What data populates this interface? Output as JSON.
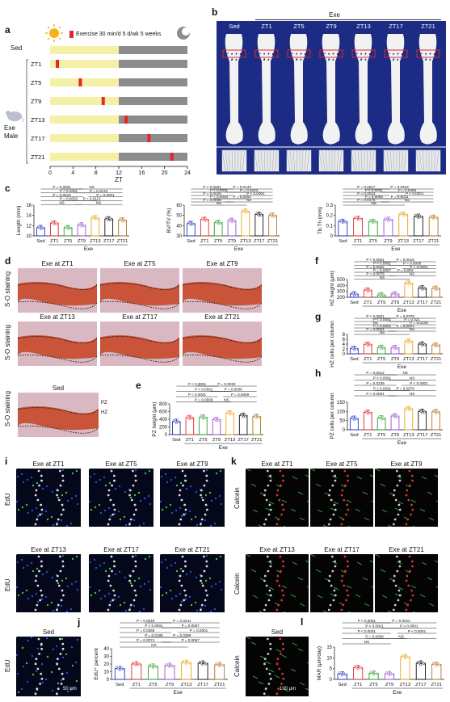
{
  "panels": {
    "a": {
      "label": "a",
      "sed_label": "Sed",
      "legend": "Exercise  30 min/d  5 d/wk 5 weeks",
      "group_label": "Exe",
      "group_label2": "Male",
      "rows": [
        "ZT1",
        "ZT5",
        "ZT9",
        "ZT13",
        "ZT17",
        "ZT21"
      ],
      "exercise_times": [
        1,
        5,
        9,
        13,
        17,
        21
      ],
      "xticks": [
        "0",
        "4",
        "8",
        "12",
        "16",
        "20",
        "24"
      ],
      "xlabel": "ZT",
      "colors": {
        "light": "#f4f1a6",
        "dark": "#8c8c8c",
        "exercise": "#e5252a"
      }
    },
    "b": {
      "label": "b",
      "header": "Exe",
      "columns": [
        "Sed",
        "ZT1",
        "ZT5",
        "ZT9",
        "ZT13",
        "ZT17",
        "ZT21"
      ],
      "background": "#1c2c84"
    },
    "c": {
      "label": "c"
    },
    "d": {
      "label": "d",
      "tiles": [
        "Exe at ZT1",
        "Exe at ZT5",
        "Exe at ZT9",
        "Exe at ZT13",
        "Exe at ZT17",
        "Exe at ZT21"
      ],
      "sed_title": "Sed",
      "row_label": "S-O staining",
      "pz": "PZ",
      "hz": "HZ"
    },
    "e": {
      "label": "e"
    },
    "f": {
      "label": "f"
    },
    "g": {
      "label": "g"
    },
    "h": {
      "label": "h"
    },
    "i": {
      "label": "i",
      "tiles": [
        "Exe at ZT1",
        "Exe at ZT5",
        "Exe at ZT9",
        "Exe at ZT13",
        "Exe at ZT17",
        "Exe at ZT21"
      ],
      "sed_title": "Sed",
      "row_label": "EdU",
      "scale": "50 μm"
    },
    "j": {
      "label": "j"
    },
    "k": {
      "label": "k",
      "tiles": [
        "Exe at ZT1",
        "Exe at ZT5",
        "Exe at ZT9",
        "Exe at ZT13",
        "Exe at ZT17",
        "Exe at ZT21"
      ],
      "sed_title": "Sed",
      "row_label": "Calcein",
      "scale": "100 μm"
    },
    "l": {
      "label": "l"
    }
  },
  "chart_data": [
    {
      "id": "c1",
      "type": "bar",
      "ylabel": "Length (mm)",
      "ylim": [
        10,
        16
      ],
      "yticks": [
        10,
        12,
        14,
        16
      ],
      "categories": [
        "Sed",
        "ZT1",
        "ZT5",
        "ZT9",
        "ZT13",
        "ZT17",
        "ZT21"
      ],
      "values": [
        11.6,
        12.5,
        11.6,
        12.1,
        13.5,
        13.3,
        13.1
      ],
      "group_label": "Exe",
      "colors": [
        "#2233cc",
        "#e5252a",
        "#2ca02c",
        "#9b4fd1",
        "#e8a317",
        "#111111",
        "#b5701f"
      ],
      "annotations": [
        "P = 0.0001",
        "NS",
        "P < 0.0001",
        "P = 0.0144",
        "P = 0.0043",
        "P = 0.0001",
        "P = 0.0033",
        "P = 0.0113",
        "NS",
        "NS"
      ]
    },
    {
      "id": "c2",
      "type": "bar",
      "ylabel": "BV/TV (%)",
      "ylim": [
        30,
        60
      ],
      "yticks": [
        30,
        40,
        50,
        60
      ],
      "categories": [
        "Sed",
        "ZT1",
        "ZT5",
        "ZT9",
        "ZT13",
        "ZT17",
        "ZT21"
      ],
      "values": [
        42,
        46,
        43,
        45,
        54,
        51,
        50
      ],
      "group_label": "Exe",
      "colors": [
        "#2233cc",
        "#e5252a",
        "#2ca02c",
        "#9b4fd1",
        "#e8a317",
        "#111111",
        "#b5701f"
      ],
      "annotations": [
        "P < 0.0001",
        "P = 0.0143",
        "P < 0.0001",
        "P = 0.0243",
        "P = 0.0029",
        "P < 0.0001",
        "P = 0.0034",
        "P = 0.0002",
        "P = 0.0008",
        "NS",
        "NS"
      ]
    },
    {
      "id": "c3",
      "type": "bar",
      "ylabel": "Tb.Th (mm)",
      "ylim": [
        0.0,
        0.3
      ],
      "yticks": [
        0.0,
        0.1,
        0.2,
        0.3
      ],
      "categories": [
        "Sed",
        "ZT1",
        "ZT5",
        "ZT9",
        "ZT13",
        "ZT17",
        "ZT21"
      ],
      "values": [
        0.14,
        0.17,
        0.14,
        0.16,
        0.21,
        0.19,
        0.18
      ],
      "group_label": "Exe",
      "colors": [
        "#2233cc",
        "#e5252a",
        "#2ca02c",
        "#9b4fd1",
        "#e8a317",
        "#111111",
        "#b5701f"
      ],
      "annotations": [
        "P = 0.0017",
        "P = 0.0343",
        "P < 0.0001",
        "P = 0.0459",
        "P = 0.0023",
        "P < 0.0001",
        "P = 0.0008",
        "P = 0.0011",
        "P = 0.0175",
        "NS",
        "NS"
      ]
    },
    {
      "id": "e",
      "type": "bar",
      "ylabel": "PZ height (μm)",
      "ylim": [
        0,
        800
      ],
      "yticks": [
        0,
        200,
        400,
        600,
        800
      ],
      "categories": [
        "Sed",
        "ZT1",
        "ZT5",
        "ZT9",
        "ZT13",
        "ZT17",
        "ZT21"
      ],
      "values": [
        340,
        440,
        450,
        390,
        560,
        500,
        470
      ],
      "group_label": "Exe",
      "colors": [
        "#2233cc",
        "#e5252a",
        "#2ca02c",
        "#9b4fd1",
        "#e8a317",
        "#111111",
        "#b5701f"
      ],
      "annotations": [
        "P < 0.0001",
        "P = 0.0032",
        "P < 0.0001",
        "P = 0.0006",
        "P < 0.0001",
        "P = 0.0009",
        "P = 0.0008",
        "NS"
      ]
    },
    {
      "id": "f",
      "type": "bar",
      "ylabel": "HZ height (μm)",
      "ylim": [
        200,
        500
      ],
      "yticks": [
        200,
        300,
        400,
        500
      ],
      "categories": [
        "Sed",
        "ZT1",
        "ZT5",
        "ZT9",
        "ZT13",
        "ZT17",
        "ZT21"
      ],
      "values": [
        255,
        320,
        240,
        255,
        440,
        355,
        350
      ],
      "group_label": "Exe",
      "colors": [
        "#2233cc",
        "#e5252a",
        "#2ca02c",
        "#9b4fd1",
        "#e8a317",
        "#111111",
        "#b5701f"
      ],
      "annotations": [
        "P < 0.0001",
        "P = 0.0015",
        "P < 0.0001",
        "P = 0.0006",
        "P = 0.0002",
        "P < 0.0001",
        "P = 0.0007",
        "P = 0.002",
        "P = 0.0078",
        "NS",
        "NS"
      ]
    },
    {
      "id": "g",
      "type": "bar",
      "ylabel": "HZ cells per column",
      "ylim": [
        0,
        8
      ],
      "yticks": [
        0,
        2,
        4,
        6,
        8
      ],
      "categories": [
        "Sed",
        "ZT1",
        "ZT5",
        "ZT9",
        "ZT13",
        "ZT17",
        "ZT21"
      ],
      "values": [
        2.2,
        3.9,
        2.6,
        2.5,
        5.2,
        4.0,
        3.6
      ],
      "group_label": "Exe",
      "colors": [
        "#2233cc",
        "#e5252a",
        "#2ca02c",
        "#9b4fd1",
        "#e8a317",
        "#111111",
        "#b5701f"
      ],
      "annotations": [
        "P < 0.0001",
        "P = 0.0378",
        "P < 0.0001",
        "P = 0.021",
        "NS",
        "P = 0.0239",
        "P < 0.0001",
        "P < 0.0001",
        "P = 0.0004",
        "NS",
        "NS"
      ]
    },
    {
      "id": "h",
      "type": "bar",
      "ylabel": "PZ cells per column",
      "ylim": [
        0,
        150
      ],
      "yticks": [
        0,
        50,
        100,
        150
      ],
      "categories": [
        "Sed",
        "ZT1",
        "ZT5",
        "ZT9",
        "ZT13",
        "ZT17",
        "ZT21"
      ],
      "values": [
        62,
        95,
        64,
        75,
        115,
        100,
        98
      ],
      "group_label": "Exe",
      "colors": [
        "#2233cc",
        "#e5252a",
        "#2ca02c",
        "#9b4fd1",
        "#e8a317",
        "#111111",
        "#b5701f"
      ],
      "annotations": [
        "P = 0.0012",
        "NS",
        "P < 0.0001",
        "NS",
        "P = 0.0239",
        "P < 0.0001",
        "P < 0.0001",
        "P = 0.0078",
        "P < 0.0001",
        "NS"
      ]
    },
    {
      "id": "j",
      "type": "bar",
      "ylabel": "EdU⁺ percent",
      "ylim": [
        0,
        40
      ],
      "yticks": [
        0,
        10,
        20,
        30,
        40
      ],
      "categories": [
        "Sed",
        "ZT1",
        "ZT5",
        "ZT9",
        "ZT13",
        "ZT17",
        "ZT21"
      ],
      "values": [
        14,
        20,
        17,
        18,
        22,
        21,
        19
      ],
      "group_label": "Exe",
      "colors": [
        "#2233cc",
        "#e5252a",
        "#2ca02c",
        "#9b4fd1",
        "#e8a317",
        "#111111",
        "#b5701f"
      ],
      "annotations": [
        "P = 0.0049",
        "P = 0.0241",
        "P < 0.0001",
        "P = 0.0097",
        "P = 0.0268",
        "P = 0.0001",
        "P = 0.0185",
        "P = 0.0366",
        "P = 0.0074",
        "P = 0.0067",
        "NS"
      ]
    },
    {
      "id": "l",
      "type": "bar",
      "ylabel": "MAR (μm/day)",
      "ylim": [
        0,
        15
      ],
      "yticks": [
        0,
        5,
        10,
        15
      ],
      "categories": [
        "Sed",
        "ZT1",
        "ZT5",
        "ZT9",
        "ZT13",
        "ZT17",
        "ZT21"
      ],
      "values": [
        2.5,
        5.5,
        2.8,
        2.6,
        10.5,
        7.5,
        7.0
      ],
      "group_label": "Exe",
      "colors": [
        "#2233cc",
        "#e5252a",
        "#2ca02c",
        "#9b4fd1",
        "#e8a317",
        "#111111",
        "#b5701f"
      ],
      "annotations": [
        "P < 0.0001",
        "P = 0.0012",
        "P < 0.0001",
        "P < 0.0001",
        "P < 0.0001",
        "P < 0.0001",
        "P = 0.0098",
        "NS",
        "NS"
      ]
    }
  ]
}
